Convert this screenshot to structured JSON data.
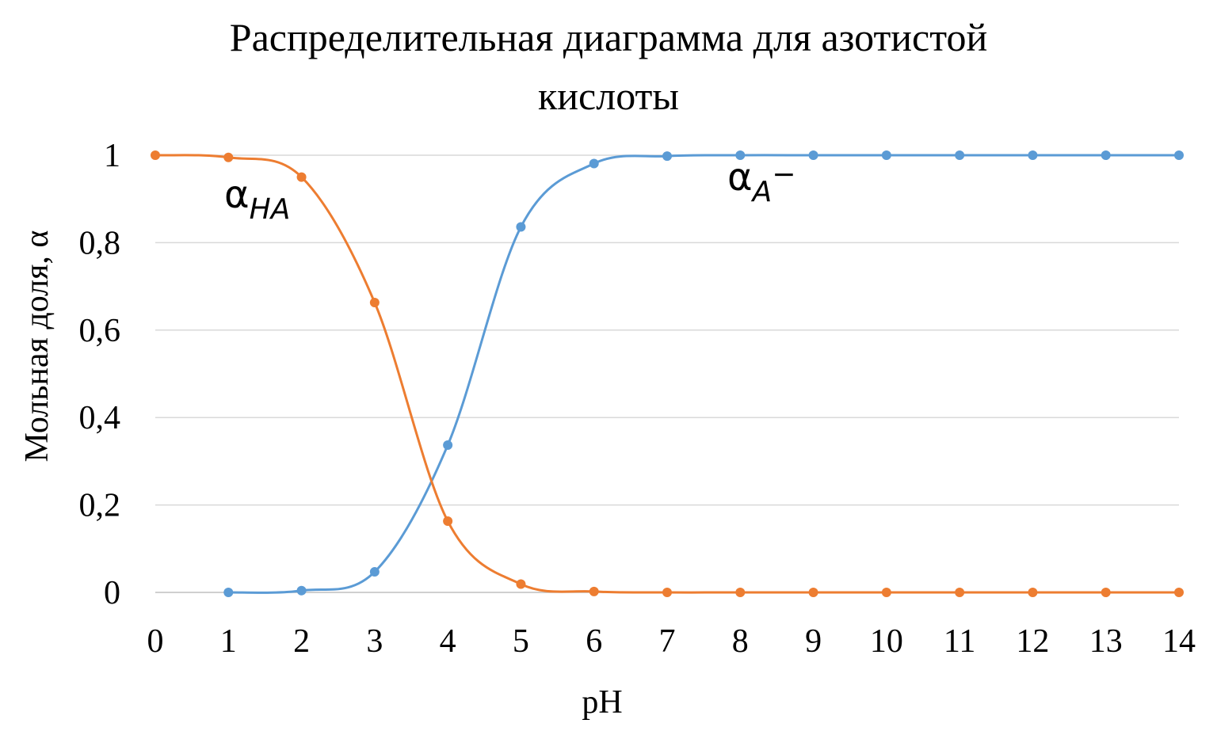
{
  "chart_data": {
    "type": "line",
    "title_line1": "Распределительная диаграмма для азотистой",
    "title_line2": "кислоты",
    "xlabel": "pH",
    "ylabel": "Мольная доля, α",
    "x_categories": [
      "0",
      "1",
      "2",
      "3",
      "4",
      "5",
      "6",
      "7",
      "8",
      "9",
      "10",
      "11",
      "12",
      "13",
      "14"
    ],
    "y_ticks": [
      "0",
      "0,2",
      "0,4",
      "0,6",
      "0,8",
      "1"
    ],
    "ylim": [
      0,
      1
    ],
    "grid": "horizontal",
    "legend": "none",
    "series": [
      {
        "key": "A",
        "color": "#5b9bd5",
        "x": [
          1,
          2,
          3,
          4,
          5,
          6,
          7,
          8,
          9,
          10,
          11,
          12,
          13,
          14
        ],
        "values": [
          0.0,
          0.004,
          0.047,
          0.337,
          0.836,
          0.981,
          0.998,
          1.0,
          1.0,
          1.0,
          1.0,
          1.0,
          1.0,
          1.0
        ]
      },
      {
        "key": "HA",
        "color": "#ed7d31",
        "x": [
          0,
          1,
          2,
          3,
          4,
          5,
          6,
          7,
          8,
          9,
          10,
          11,
          12,
          13,
          14
        ],
        "values": [
          1.0,
          0.995,
          0.95,
          0.663,
          0.163,
          0.019,
          0.002,
          0.0,
          0.0,
          0.0,
          0.0,
          0.0,
          0.0,
          0.0,
          0.0
        ]
      }
    ],
    "annotations": [
      {
        "series": "HA",
        "symbol": "α",
        "subscript": "HA"
      },
      {
        "series": "A",
        "symbol": "α",
        "subscript": "A",
        "superscript": "−"
      }
    ]
  }
}
